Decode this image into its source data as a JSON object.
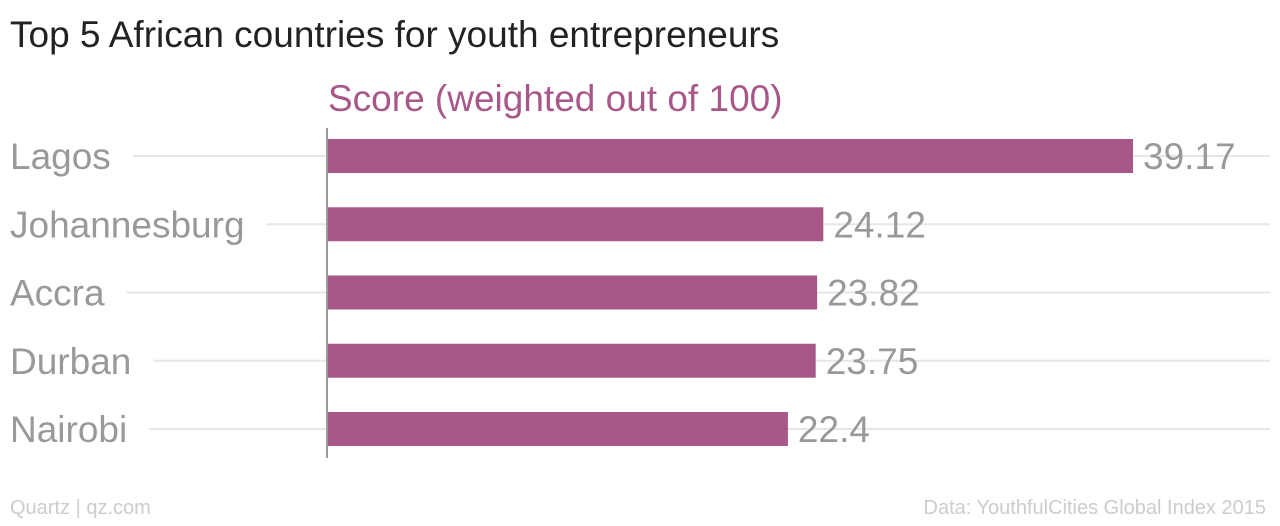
{
  "title": "Top 5 African countries for youth entrepreneurs",
  "footer": {
    "left": "Quartz | qz.com",
    "right": "Data: YouthfulCities Global Index 2015"
  },
  "colors": {
    "bar": "#a85888",
    "subtitle": "#a85888",
    "grid": "#e6e6e6",
    "axis": "#999999"
  },
  "chart_data": {
    "type": "bar",
    "orientation": "horizontal",
    "title": "Top 5 African countries for youth entrepreneurs",
    "subtitle": "Score (weighted out of 100)",
    "categories": [
      "Lagos",
      "Johannesburg",
      "Accra",
      "Durban",
      "Nairobi"
    ],
    "values": [
      39.17,
      24.12,
      23.82,
      23.75,
      22.4
    ],
    "value_labels": [
      "39.17",
      "24.12",
      "23.82",
      "23.75",
      "22.4"
    ],
    "xlim": [
      0,
      39.17
    ],
    "grid": true,
    "legend": "none"
  }
}
